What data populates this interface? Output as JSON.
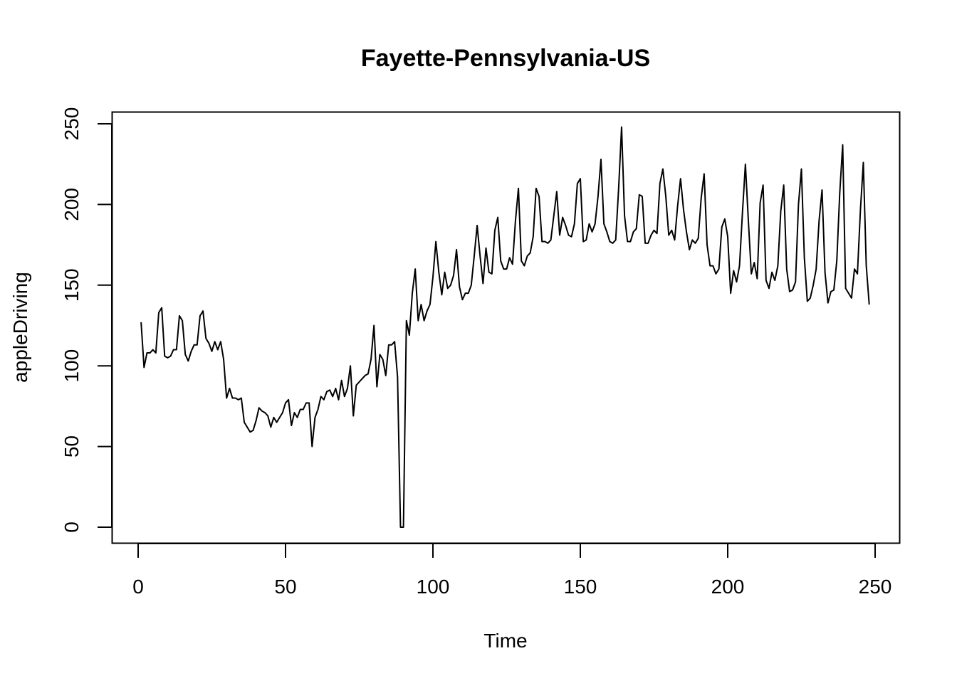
{
  "chart_data": {
    "type": "line",
    "title": "Fayette-Pennsylvania-US",
    "xlabel": "Time",
    "ylabel": "appleDriving",
    "xlim": [
      0,
      250
    ],
    "ylim": [
      0,
      250
    ],
    "x_ticks": [
      0,
      50,
      100,
      150,
      200,
      250
    ],
    "y_ticks": [
      0,
      50,
      100,
      150,
      200,
      250
    ],
    "x_tick_labels": [
      "0",
      "50",
      "100",
      "150",
      "200",
      "250"
    ],
    "y_tick_labels": [
      "0",
      "50",
      "100",
      "150",
      "200",
      "250"
    ],
    "grid": false,
    "line_color": "#000000",
    "x_start": 1,
    "values": [
      127,
      99,
      108,
      108,
      110,
      108,
      133,
      136,
      106,
      105,
      106,
      110,
      110,
      131,
      128,
      107,
      103,
      109,
      113,
      113,
      131,
      134,
      117,
      114,
      109,
      115,
      110,
      115,
      104,
      80,
      86,
      80,
      80,
      79,
      80,
      65,
      62,
      59,
      60,
      66,
      74,
      72,
      71,
      69,
      62,
      68,
      65,
      68,
      71,
      77,
      79,
      63,
      71,
      68,
      73,
      73,
      77,
      77,
      50,
      68,
      73,
      81,
      79,
      84,
      85,
      81,
      86,
      79,
      91,
      81,
      86,
      100,
      69,
      88,
      90,
      92,
      94,
      95,
      104,
      125,
      87,
      107,
      104,
      94,
      113,
      113,
      115,
      93,
      0,
      0,
      128,
      119,
      145,
      160,
      128,
      138,
      128,
      134,
      138,
      155,
      177,
      158,
      144,
      158,
      148,
      150,
      156,
      172,
      149,
      141,
      145,
      145,
      150,
      168,
      187,
      168,
      151,
      173,
      158,
      157,
      184,
      192,
      165,
      160,
      160,
      167,
      163,
      190,
      210,
      165,
      162,
      168,
      170,
      180,
      210,
      205,
      177,
      177,
      176,
      178,
      193,
      208,
      181,
      192,
      187,
      181,
      180,
      188,
      213,
      216,
      177,
      178,
      188,
      183,
      188,
      205,
      228,
      188,
      183,
      177,
      176,
      178,
      210,
      248,
      193,
      177,
      177,
      183,
      185,
      206,
      205,
      176,
      176,
      181,
      184,
      182,
      213,
      222,
      205,
      181,
      184,
      178,
      199,
      216,
      197,
      183,
      172,
      178,
      176,
      179,
      204,
      219,
      175,
      162,
      162,
      157,
      160,
      186,
      191,
      180,
      145,
      159,
      152,
      162,
      195,
      225,
      190,
      157,
      164,
      154,
      201,
      212,
      153,
      148,
      158,
      153,
      162,
      196,
      212,
      160,
      146,
      147,
      152,
      200,
      222,
      167,
      140,
      142,
      150,
      160,
      190,
      209,
      158,
      139,
      146,
      147,
      165,
      207,
      237,
      148,
      145,
      142,
      160,
      157,
      196,
      226,
      162,
      138
    ]
  }
}
